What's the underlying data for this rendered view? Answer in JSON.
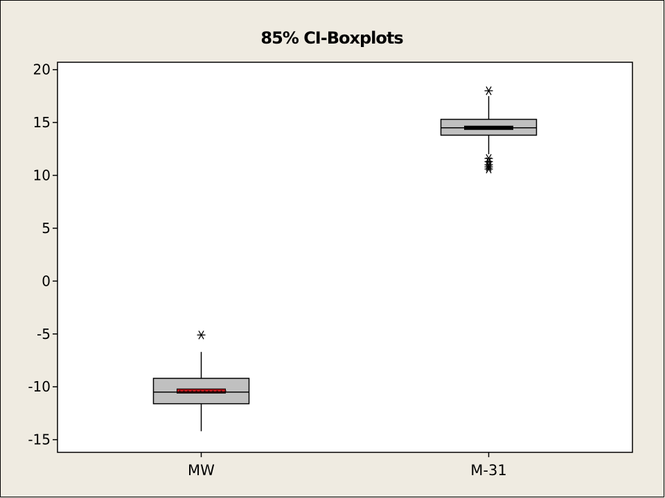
{
  "chart_data": {
    "type": "boxplot",
    "title": "85% CI-Boxplots",
    "xlabel": "",
    "ylabel": "",
    "ylim": [
      -16.2,
      20.7
    ],
    "yticks": [
      -15,
      -10,
      -5,
      0,
      5,
      10,
      15,
      20
    ],
    "categories": [
      "MW",
      "M-31"
    ],
    "boxes": [
      {
        "category": "MW",
        "whisker_low": -14.2,
        "q1": -11.6,
        "median": -10.5,
        "q3": -9.2,
        "whisker_high": -6.7,
        "ci_low": -10.6,
        "ci_high": -10.2,
        "outliers": [
          -5.1
        ],
        "ci_color": "#c0161b"
      },
      {
        "category": "M-31",
        "whisker_low": 12.0,
        "q1": 13.8,
        "median": 14.5,
        "q3": 15.3,
        "whisker_high": 17.5,
        "ci_low": 14.4,
        "ci_high": 14.6,
        "outliers": [
          18.0,
          11.6,
          11.3,
          11.0,
          10.8,
          10.6
        ],
        "ci_color": "#000000"
      }
    ],
    "grid": false,
    "legend": "none",
    "colors": {
      "box_fill": "#c0c0c0",
      "plot_bg": "#ffffff",
      "page_bg": "#efebe1"
    }
  }
}
